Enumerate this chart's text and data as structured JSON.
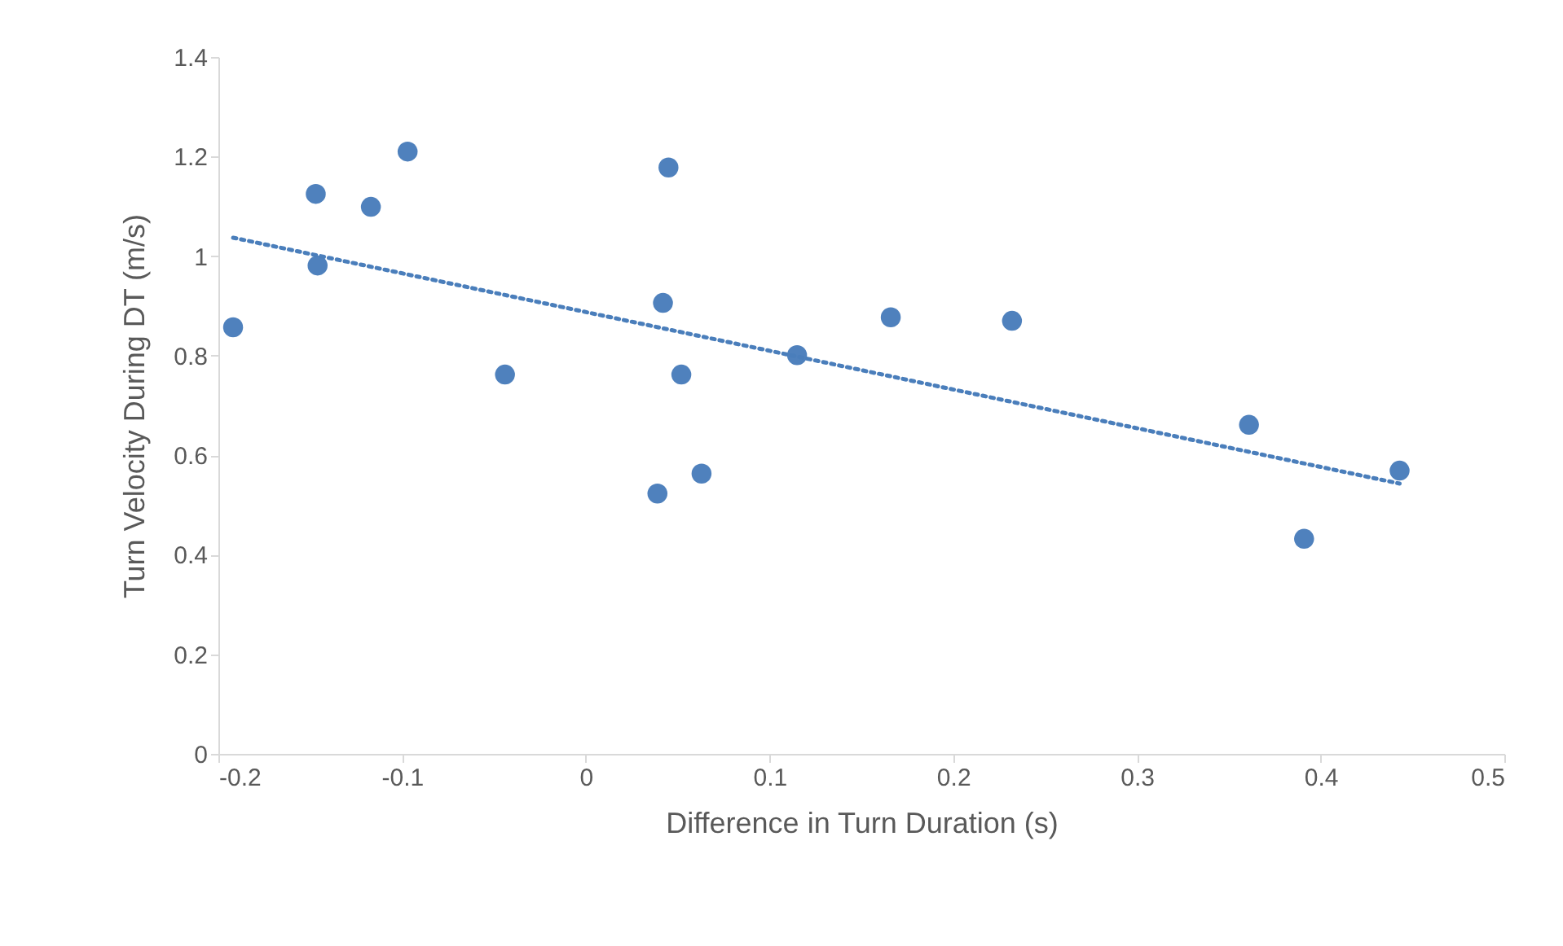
{
  "chart_data": {
    "type": "scatter",
    "xlabel": "Difference in Turn Duration (s)",
    "ylabel": "Turn Velocity During DT (m/s)",
    "xlim": [
      -0.2,
      0.5
    ],
    "xticks": [
      -0.2,
      -0.1,
      0,
      0.1,
      0.2,
      0.3,
      0.4,
      0.5
    ],
    "ylim": [
      0,
      1.4
    ],
    "yticks": [
      0,
      0.2,
      0.4,
      0.6,
      0.8,
      1,
      1.2,
      1.4
    ],
    "grid": false,
    "marker": "circle",
    "series": [
      {
        "color": "#4f81bd",
        "x": [
          -0.192,
          -0.147,
          -0.146,
          -0.117,
          -0.097,
          -0.044,
          0.039,
          0.042,
          0.045,
          0.052,
          0.063,
          0.115,
          0.166,
          0.232,
          0.361,
          0.391,
          0.443
        ],
        "values": [
          0.857,
          1.125,
          0.981,
          1.099,
          1.21,
          0.762,
          0.523,
          0.906,
          1.178,
          0.762,
          0.563,
          0.801,
          0.877,
          0.87,
          0.661,
          0.432,
          0.569
        ]
      },
      {
        "type": "line",
        "line_style": "dotted",
        "marker": "none",
        "color": "#4a7ebb",
        "x": [
          -0.192,
          0.443
        ],
        "values": [
          1.037,
          0.543
        ]
      }
    ]
  }
}
